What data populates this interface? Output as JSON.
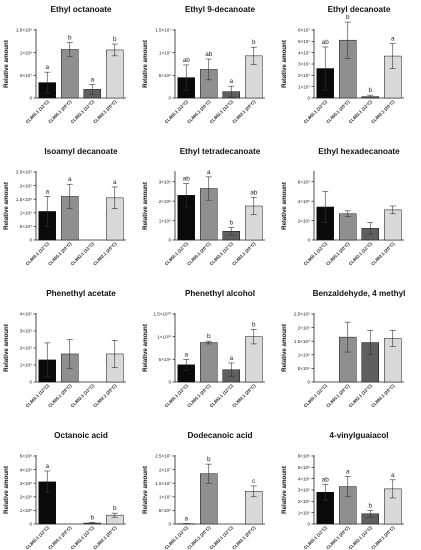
{
  "figure": {
    "category_labels": [
      "CL865.1 (12°C)",
      "CL865.1 (20°C)",
      "CL882.1 (12°C)",
      "CL882.1 (20°C)"
    ],
    "bar_colors": [
      "#0a0a0a",
      "#8f8f8f",
      "#5f5f5f",
      "#d9d9d9"
    ],
    "ylabel": "Relative amount"
  },
  "chart_data": [
    {
      "type": "bar",
      "title": "Ethyl octanoate",
      "ylabel": "Relative amount",
      "categories": [
        "CL865.1 (12°C)",
        "CL865.1 (20°C)",
        "CL882.1 (12°C)",
        "CL882.1 (20°C)"
      ],
      "ylim": [
        0,
        150000000.0
      ],
      "yticks": [
        0,
        50000000.0,
        100000000.0,
        150000000.0
      ],
      "ytick_labels": [
        "0",
        "5×10⁷",
        "1×10⁸",
        "1.5×10⁸"
      ],
      "values": [
        34000000.0,
        107000000.0,
        19000000.0,
        106000000.0
      ],
      "errors": [
        23000000.0,
        15000000.0,
        11000000.0,
        13000000.0
      ],
      "letters": [
        "a",
        "b",
        "a",
        "b"
      ]
    },
    {
      "type": "bar",
      "title": "Ethyl 9-decanoate",
      "ylabel": "Relative amount",
      "categories": [
        "CL865.1 (12°C)",
        "CL865.1 (20°C)",
        "CL882.1 (12°C)",
        "CL882.1 (20°C)"
      ],
      "ylim": [
        0,
        15000000.0
      ],
      "yticks": [
        0,
        5000000.0,
        10000000.0,
        15000000.0
      ],
      "ytick_labels": [
        "0",
        "5×10⁶",
        "1×10⁷",
        "1.5×10⁷"
      ],
      "values": [
        4500000.0,
        6300000.0,
        1400000.0,
        9300000.0
      ],
      "errors": [
        2800000.0,
        2300000.0,
        1200000.0,
        1900000.0
      ],
      "letters": [
        "ab",
        "ab",
        "a",
        "b"
      ]
    },
    {
      "type": "bar",
      "title": "Ethyl decanoate",
      "ylabel": "Relative amount",
      "categories": [
        "CL865.1 (12°C)",
        "CL865.1 (20°C)",
        "CL882.1 (12°C)",
        "CL882.1 (20°C)"
      ],
      "ylim": [
        0,
        60000000.0
      ],
      "yticks": [
        0,
        10000000.0,
        20000000.0,
        30000000.0,
        40000000.0,
        50000000.0,
        60000000.0
      ],
      "ytick_labels": [
        "0",
        "1×10⁷",
        "2×10⁷",
        "3×10⁷",
        "4×10⁷",
        "5×10⁷",
        "6×10⁷"
      ],
      "values": [
        26000000.0,
        51000000.0,
        1200000.0,
        37000000.0
      ],
      "errors": [
        19000000.0,
        16000000.0,
        1300000.0,
        11000000.0
      ],
      "letters": [
        "ab",
        "b",
        "b",
        "a"
      ]
    },
    {
      "type": "bar",
      "title": "Isoamyl decanoate",
      "ylabel": "Relative amount",
      "categories": [
        "CL865.1 (12°C)",
        "CL865.1 (20°C)",
        "CL882.1 (12°C)",
        "CL882.1 (20°C)"
      ],
      "ylim": [
        0,
        250000.0
      ],
      "yticks": [
        0,
        50000.0,
        100000.0,
        150000.0,
        200000.0,
        250000.0
      ],
      "ytick_labels": [
        "0",
        "5×10⁴",
        "1×10⁵",
        "1.5×10⁵",
        "2×10⁵",
        "2.5×10⁵"
      ],
      "values": [
        105000.0,
        160000.0,
        0,
        155000.0
      ],
      "errors": [
        55000.0,
        45000.0,
        0,
        40000.0
      ],
      "letters": [
        "a",
        "a",
        "",
        "a"
      ]
    },
    {
      "type": "bar",
      "title": "Ethyl tetradecanoate",
      "ylabel": "Relative amount",
      "categories": [
        "CL865.1 (12°C)",
        "CL865.1 (20°C)",
        "CL882.1 (12°C)",
        "CL882.1 (20°C)"
      ],
      "ylim": [
        0,
        3500000.0
      ],
      "yticks": [
        0,
        1000000.0,
        2000000.0,
        3000000.0
      ],
      "ytick_labels": [
        "0",
        "1×10⁶",
        "2×10⁶",
        "3×10⁶"
      ],
      "values": [
        2300000.0,
        2650000.0,
        450000.0,
        1750000.0
      ],
      "errors": [
        600000.0,
        600000.0,
        200000.0,
        450000.0
      ],
      "letters": [
        "ab",
        "a",
        "b",
        "ab"
      ]
    },
    {
      "type": "bar",
      "title": "Ethyl hexadecanoate",
      "ylabel": "Relative amount",
      "categories": [
        "CL865.1 (12°C)",
        "CL865.1 (20°C)",
        "CL882.1 (12°C)",
        "CL882.1 (20°C)"
      ],
      "ylim": [
        0,
        700000.0
      ],
      "yticks": [
        0,
        200000.0,
        400000.0,
        600000.0
      ],
      "ytick_labels": [
        "0",
        "2×10⁵",
        "4×10⁵",
        "6×10⁵"
      ],
      "values": [
        340000.0,
        270000.0,
        120000.0,
        310000.0
      ],
      "errors": [
        160000.0,
        30000.0,
        60000.0,
        40000.0
      ],
      "letters": [
        "",
        "",
        "",
        ""
      ]
    },
    {
      "type": "bar",
      "title": "Phenethyl acetate",
      "ylabel": "Relative amount",
      "categories": [
        "CL865.1 (12°C)",
        "CL865.1 (20°C)",
        "CL882.1 (12°C)",
        "CL882.1 (20°C)"
      ],
      "ylim": [
        0,
        400000.0
      ],
      "yticks": [
        0,
        100000.0,
        200000.0,
        300000.0,
        400000.0
      ],
      "ytick_labels": [
        "0",
        "1×10⁵",
        "2×10⁵",
        "3×10⁵",
        "4×10⁵"
      ],
      "values": [
        130000.0,
        165000.0,
        0,
        165000.0
      ],
      "errors": [
        100000.0,
        85000.0,
        0,
        80000.0
      ],
      "letters": [
        "",
        "",
        "",
        ""
      ]
    },
    {
      "type": "bar",
      "title": "Phenethyl alcohol",
      "ylabel": "Relative amount",
      "categories": [
        "CL865.1 (12°C)",
        "CL865.1 (20°C)",
        "CL882.1 (12°C)",
        "CL882.1 (20°C)"
      ],
      "ylim": [
        0,
        15000000000.0
      ],
      "yticks": [
        0,
        5000000000.0,
        10000000000.0,
        15000000000.0
      ],
      "ytick_labels": [
        "0",
        "5×10⁹",
        "1×10¹⁰",
        "1.5×10¹⁰"
      ],
      "values": [
        3800000000.0,
        8700000000.0,
        2700000000.0,
        10000000000.0
      ],
      "errors": [
        1200000000.0,
        300000000.0,
        1500000000.0,
        1600000000.0
      ],
      "letters": [
        "a",
        "b",
        "a",
        "b"
      ]
    },
    {
      "type": "bar",
      "title": "Benzaldehyde, 4 methyl",
      "ylabel": "Relative amount",
      "categories": [
        "CL865.1 (12°C)",
        "CL865.1 (20°C)",
        "CL882.1 (12°C)",
        "CL882.1 (20°C)"
      ],
      "ylim": [
        0,
        250000.0
      ],
      "yticks": [
        0,
        50000.0,
        100000.0,
        150000.0,
        200000.0,
        250000.0
      ],
      "ytick_labels": [
        "0",
        "5×10⁴",
        "1×10⁵",
        "1.5×10⁵",
        "2×10⁵",
        "2.5×10⁵"
      ],
      "values": [
        0,
        165000.0,
        145000.0,
        160000.0
      ],
      "errors": [
        0,
        55000.0,
        45000.0,
        30000.0
      ],
      "letters": [
        "",
        "",
        "",
        ""
      ]
    },
    {
      "type": "bar",
      "title": "Octanoic acid",
      "ylabel": "Relative amount",
      "categories": [
        "CL865.1 (12°C)",
        "CL865.1 (20°C)",
        "CL882.1 (12°C)",
        "CL882.1 (20°C)"
      ],
      "ylim": [
        0,
        500000000.0
      ],
      "yticks": [
        0,
        100000000.0,
        200000000.0,
        300000000.0,
        400000000.0,
        500000000.0
      ],
      "ytick_labels": [
        "0",
        "1×10⁸",
        "2×10⁸",
        "3×10⁸",
        "4×10⁸",
        "5×10⁸"
      ],
      "values": [
        310000000.0,
        0,
        7000000.0,
        65000000.0
      ],
      "errors": [
        80000000.0,
        0,
        5000000.0,
        15000000.0
      ],
      "letters": [
        "a",
        "",
        "b",
        "b"
      ]
    },
    {
      "type": "bar",
      "title": "Dodecanoic acid",
      "ylabel": "Relative amount",
      "categories": [
        "CL865.1 (12°C)",
        "CL865.1 (20°C)",
        "CL882.1 (12°C)",
        "CL882.1 (20°C)"
      ],
      "ylim": [
        0,
        25000000.0
      ],
      "yticks": [
        0,
        5000000.0,
        10000000.0,
        15000000.0,
        20000000.0,
        25000000.0
      ],
      "ytick_labels": [
        "0",
        "5×10⁶",
        "1×10⁷",
        "1.5×10⁷",
        "2×10⁷",
        "2.5×10⁷"
      ],
      "values": [
        100000.0,
        18500000.0,
        0,
        12000000.0
      ],
      "errors": [
        100000.0,
        3500000.0,
        0,
        2000000.0
      ],
      "letters": [
        "a",
        "b",
        "",
        "c"
      ]
    },
    {
      "type": "bar",
      "title": "4-vinylguaiacol",
      "ylabel": "Relative amount",
      "categories": [
        "CL865.1 (12°C)",
        "CL865.1 (20°C)",
        "CL882.1 (12°C)",
        "CL882.1 (20°C)"
      ],
      "ylim": [
        0,
        6000000.0
      ],
      "yticks": [
        0,
        1000000.0,
        2000000.0,
        3000000.0,
        4000000.0,
        5000000.0,
        6000000.0
      ],
      "ytick_labels": [
        "0",
        "1×10⁶",
        "2×10⁶",
        "3×10⁶",
        "4×10⁶",
        "5×10⁶",
        "6×10⁶"
      ],
      "values": [
        2800000.0,
        3300000.0,
        900000.0,
        3100000.0
      ],
      "errors": [
        700000.0,
        900000.0,
        300000.0,
        800000.0
      ],
      "letters": [
        "ab",
        "a",
        "b",
        "a"
      ]
    }
  ]
}
